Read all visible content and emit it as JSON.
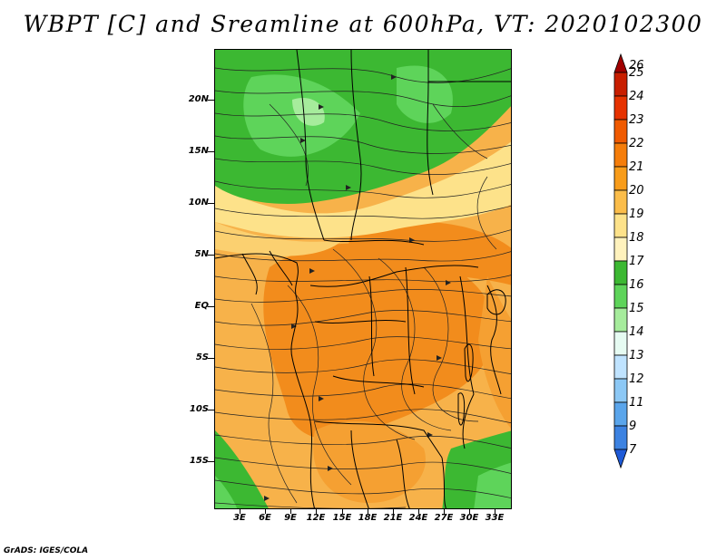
{
  "title": "WBPT [C] and Sreamline at 600hPa, VT: 2020102300",
  "credit": "GrADS: IGES/COLA",
  "map": {
    "lat_labels": [
      "20N",
      "15N",
      "10N",
      "5N",
      "EQ",
      "5S",
      "10S",
      "15S"
    ],
    "lon_labels": [
      "3E",
      "6E",
      "9E",
      "12E",
      "15E",
      "18E",
      "21E",
      "24E",
      "27E",
      "30E",
      "33E"
    ],
    "lat_range": [
      -20,
      25
    ],
    "lon_range": [
      0,
      35
    ]
  },
  "colorbar": {
    "levels": [
      "26",
      "25",
      "24",
      "23",
      "22",
      "21",
      "20",
      "19",
      "18",
      "17",
      "16",
      "15",
      "14",
      "13",
      "12",
      "11",
      "9",
      "7"
    ],
    "colors": [
      "#a00000",
      "#c81e00",
      "#e63200",
      "#f05a00",
      "#f57d0a",
      "#f89c1a",
      "#fbbd4a",
      "#fde28a",
      "#fff2bd",
      "#3cb832",
      "#5ed45a",
      "#a6ec9c",
      "#e6fbf2",
      "#bfe3ff",
      "#8cc8f5",
      "#5aa5eb",
      "#3c82e1",
      "#1e5ad7"
    ]
  }
}
